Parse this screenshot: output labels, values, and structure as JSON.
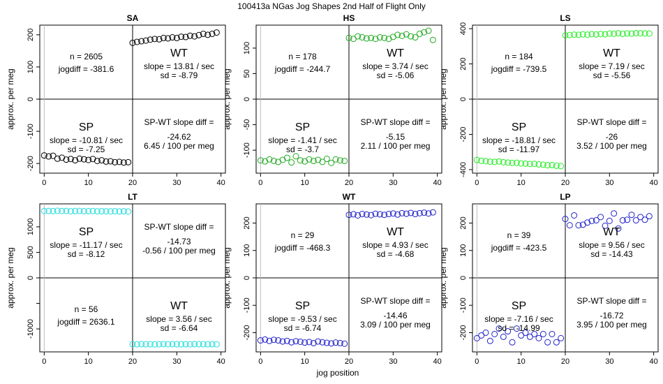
{
  "figure": {
    "title": "100413a    NGas Jog Shapes 2nd Half of Flight Only",
    "xlabel": "jog position"
  },
  "chart_data": [
    {
      "type": "scatter",
      "title": "SA",
      "ylabel": "approx. per meg",
      "xlim": [
        -1,
        41
      ],
      "ylim": [
        -230,
        230
      ],
      "xticks": [
        0,
        10,
        20,
        30,
        40
      ],
      "yticks": [
        -200,
        -100,
        0,
        100,
        200
      ],
      "color": "#000000",
      "series": [
        {
          "name": "left",
          "x": [
            0,
            1,
            2,
            3,
            4,
            5,
            6,
            7,
            8,
            9,
            10,
            11,
            12,
            13,
            14,
            15,
            16,
            17,
            18,
            19
          ],
          "values": [
            -175,
            -178,
            -176,
            -185,
            -182,
            -188,
            -186,
            -190,
            -185,
            -187,
            -189,
            -186,
            -192,
            -190,
            -194,
            -193,
            -196,
            -195,
            -197,
            -196
          ]
        },
        {
          "name": "right",
          "x": [
            20,
            21,
            22,
            23,
            24,
            25,
            26,
            27,
            28,
            29,
            30,
            31,
            32,
            33,
            34,
            35,
            36,
            37,
            38,
            39
          ],
          "values": [
            175,
            178,
            180,
            182,
            185,
            187,
            186,
            190,
            189,
            192,
            190,
            194,
            193,
            197,
            195,
            199,
            203,
            200,
            203,
            207
          ]
        }
      ],
      "annotations": {
        "tl": {
          "l1": "n = 2605",
          "l2": "jogdiff = -381.6"
        },
        "tr": {
          "name": "WT",
          "l1": "slope = 13.81 / sec",
          "l2": "sd = -8.79"
        },
        "bl": {
          "name": "SP",
          "l1": "slope = -10.81 / sec",
          "l2": "sd = -7.25"
        },
        "br": {
          "l0": "SP-WT slope diff =",
          "l1": "-24.62",
          "l2": "6.45 / 100 per meg"
        }
      }
    },
    {
      "type": "scatter",
      "title": "HS",
      "ylabel": "approx. per meg",
      "xlim": [
        -1,
        41
      ],
      "ylim": [
        -145,
        145
      ],
      "xticks": [
        0,
        10,
        20,
        30,
        40
      ],
      "yticks": [
        -100,
        -50,
        0,
        50,
        100
      ],
      "color": "#22aa22",
      "series": [
        {
          "name": "left",
          "x": [
            0,
            1,
            2,
            3,
            4,
            5,
            6,
            7,
            8,
            9,
            10,
            11,
            12,
            13,
            14,
            15,
            16,
            17,
            18,
            19
          ],
          "values": [
            -120,
            -122,
            -118,
            -121,
            -123,
            -119,
            -115,
            -124,
            -112,
            -120,
            -122,
            -118,
            -121,
            -119,
            -123,
            -117,
            -125,
            -118,
            -120,
            -121
          ]
        },
        {
          "name": "right",
          "x": [
            20,
            21,
            22,
            23,
            24,
            25,
            26,
            27,
            28,
            29,
            30,
            31,
            32,
            33,
            34,
            35,
            36,
            37,
            38,
            39
          ],
          "values": [
            120,
            118,
            123,
            121,
            119,
            120,
            118,
            121,
            120,
            118,
            122,
            126,
            124,
            127,
            123,
            121,
            128,
            131,
            134,
            116
          ]
        }
      ],
      "annotations": {
        "tl": {
          "l1": "n = 178",
          "l2": "jogdiff = -244.7"
        },
        "tr": {
          "name": "WT",
          "l1": "slope = 3.74 / sec",
          "l2": "sd = -5.06"
        },
        "bl": {
          "name": "SP",
          "l1": "slope = -1.41 / sec",
          "l2": "sd = -3.7"
        },
        "br": {
          "l0": "SP-WT slope diff =",
          "l1": "-5.15",
          "l2": "2.11 / 100 per meg"
        }
      }
    },
    {
      "type": "scatter",
      "title": "LS",
      "ylabel": "approx. per meg",
      "xlim": [
        -1,
        41
      ],
      "ylim": [
        -420,
        420
      ],
      "xticks": [
        0,
        10,
        20,
        30,
        40
      ],
      "yticks": [
        -400,
        -200,
        0,
        200,
        400
      ],
      "color": "#22ee22",
      "series": [
        {
          "name": "left",
          "x": [
            0,
            1,
            2,
            3,
            4,
            5,
            6,
            7,
            8,
            9,
            10,
            11,
            12,
            13,
            14,
            15,
            16,
            17,
            18,
            19
          ],
          "values": [
            -345,
            -350,
            -352,
            -355,
            -356,
            -354,
            -358,
            -360,
            -362,
            -361,
            -365,
            -366,
            -368,
            -367,
            -370,
            -372,
            -375,
            -374,
            -378,
            -380
          ]
        },
        {
          "name": "right",
          "x": [
            20,
            21,
            22,
            23,
            24,
            25,
            26,
            27,
            28,
            29,
            30,
            31,
            32,
            33,
            34,
            35,
            36,
            37,
            38,
            39
          ],
          "values": [
            362,
            364,
            366,
            365,
            368,
            366,
            369,
            367,
            370,
            368,
            372,
            371,
            374,
            370,
            373,
            372,
            375,
            374,
            373,
            372
          ]
        }
      ],
      "annotations": {
        "tl": {
          "l1": "n = 184",
          "l2": "jogdiff = -739.5"
        },
        "tr": {
          "name": "WT",
          "l1": "slope = 7.19 / sec",
          "l2": "sd = -5.56"
        },
        "bl": {
          "name": "SP",
          "l1": "slope = -18.81 / sec",
          "l2": "sd = -11.97"
        },
        "br": {
          "l0": "SP-WT slope diff =",
          "l1": "-26",
          "l2": "3.52 / 100 per meg"
        }
      }
    },
    {
      "type": "scatter",
      "title": "LT",
      "ylabel": "approx. per meg",
      "xlim": [
        -1,
        41
      ],
      "ylim": [
        -1450,
        1450
      ],
      "xticks": [
        0,
        10,
        20,
        30,
        40
      ],
      "yticks": [
        -1000,
        -500,
        0,
        500,
        1000
      ],
      "ytick_labels": [
        "-1000",
        "",
        "0",
        "500",
        "1000"
      ],
      "color": "#22dddd",
      "series": [
        {
          "name": "left",
          "x": [
            0,
            1,
            2,
            3,
            4,
            5,
            6,
            7,
            8,
            9,
            10,
            11,
            12,
            13,
            14,
            15,
            16,
            17,
            18,
            19
          ],
          "values": [
            1310,
            1312,
            1308,
            1315,
            1310,
            1312,
            1305,
            1309,
            1311,
            1306,
            1308,
            1310,
            1304,
            1307,
            1305,
            1303,
            1306,
            1302,
            1304,
            1300
          ]
        },
        {
          "name": "right",
          "x": [
            20,
            21,
            22,
            23,
            24,
            25,
            26,
            27,
            28,
            29,
            30,
            31,
            32,
            33,
            34,
            35,
            36,
            37,
            38,
            39
          ],
          "values": [
            -1300,
            -1302,
            -1298,
            -1301,
            -1299,
            -1303,
            -1300,
            -1297,
            -1301,
            -1298,
            -1300,
            -1302,
            -1299,
            -1301,
            -1298,
            -1300,
            -1299,
            -1302,
            -1300,
            -1301
          ]
        }
      ],
      "annotations": {
        "tl": {
          "name": "SP",
          "l1": "slope = -11.17 / sec",
          "l2": "sd = -8.12"
        },
        "tr": {
          "l0": "SP-WT slope diff =",
          "l1": "-14.73",
          "l2": "-0.56 / 100 per meg"
        },
        "bl": {
          "l1": "n = 56",
          "l2": "jogdiff = 2636.1"
        },
        "br": {
          "name": "WT",
          "l1": "slope = 3.56 / sec",
          "l2": "sd = -6.64"
        }
      }
    },
    {
      "type": "scatter",
      "title": "WT",
      "ylabel": "approx. per meg",
      "xlim": [
        -1,
        41
      ],
      "ylim": [
        -270,
        270
      ],
      "xticks": [
        0,
        10,
        20,
        30,
        40
      ],
      "yticks": [
        -200,
        -100,
        0,
        100,
        200
      ],
      "color": "#2222cc",
      "series": [
        {
          "name": "left",
          "x": [
            0,
            1,
            2,
            3,
            4,
            5,
            6,
            7,
            8,
            9,
            10,
            11,
            12,
            13,
            14,
            15,
            16,
            17,
            18,
            19
          ],
          "values": [
            -228,
            -225,
            -230,
            -226,
            -228,
            -232,
            -230,
            -235,
            -231,
            -233,
            -236,
            -234,
            -238,
            -232,
            -235,
            -237,
            -239,
            -236,
            -238,
            -240
          ]
        },
        {
          "name": "right",
          "x": [
            20,
            21,
            22,
            23,
            24,
            25,
            26,
            27,
            28,
            29,
            30,
            31,
            32,
            33,
            34,
            35,
            36,
            37,
            38,
            39
          ],
          "values": [
            230,
            232,
            228,
            233,
            231,
            229,
            234,
            232,
            230,
            233,
            235,
            231,
            236,
            234,
            237,
            233,
            236,
            238,
            235,
            239
          ]
        }
      ],
      "annotations": {
        "tl": {
          "l1": "n = 29",
          "l2": "jogdiff = -468.3"
        },
        "tr": {
          "name": "WT",
          "l1": "slope = 4.93 / sec",
          "l2": "sd = -4.68"
        },
        "bl": {
          "name": "SP",
          "l1": "slope = -9.53 / sec",
          "l2": "sd = -6.74"
        },
        "br": {
          "l0": "SP-WT slope diff =",
          "l1": "-14.46",
          "l2": "3.09 / 100 per meg"
        }
      }
    },
    {
      "type": "scatter",
      "title": "LP",
      "ylabel": "approx. per meg",
      "xlim": [
        -1,
        41
      ],
      "ylim": [
        -270,
        270
      ],
      "xticks": [
        0,
        10,
        20,
        30,
        40
      ],
      "yticks": [
        -200,
        -100,
        0,
        100,
        200
      ],
      "color": "#2222cc",
      "series": [
        {
          "name": "left",
          "x": [
            0,
            1,
            2,
            3,
            4,
            5,
            6,
            7,
            8,
            9,
            10,
            11,
            12,
            13,
            14,
            15,
            16,
            17,
            18,
            19
          ],
          "values": [
            -220,
            -210,
            -200,
            -230,
            -205,
            -185,
            -215,
            -195,
            -235,
            -185,
            -210,
            -200,
            -215,
            -205,
            -220,
            -205,
            -235,
            -205,
            -235,
            -220
          ]
        },
        {
          "name": "right",
          "x": [
            20,
            21,
            22,
            23,
            24,
            25,
            26,
            27,
            28,
            29,
            30,
            31,
            32,
            33,
            34,
            35,
            36,
            37,
            38,
            39
          ],
          "values": [
            215,
            192,
            228,
            192,
            194,
            202,
            208,
            210,
            222,
            190,
            208,
            235,
            180,
            210,
            212,
            230,
            210,
            222,
            212,
            225
          ]
        }
      ],
      "annotations": {
        "tl": {
          "l1": "n = 39",
          "l2": "jogdiff = -423.5"
        },
        "tr": {
          "name": "WT",
          "l1": "slope = 9.56 / sec",
          "l2": "sd = -14.43"
        },
        "bl": {
          "name": "SP",
          "l1": "slope = -7.16 / sec",
          "l2": "sd = -14.99"
        },
        "br": {
          "l0": "SP-WT slope diff =",
          "l1": "-16.72",
          "l2": "3.95 / 100 per meg"
        }
      }
    }
  ]
}
